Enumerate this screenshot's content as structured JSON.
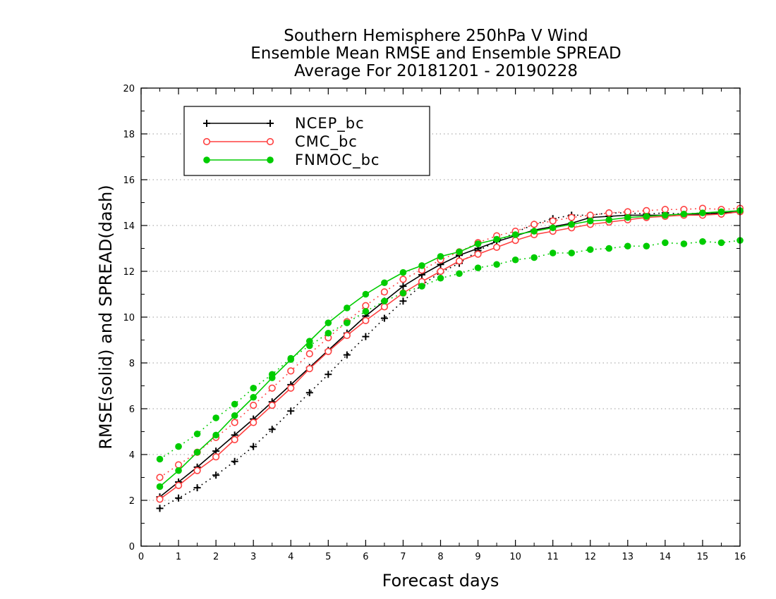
{
  "chart_data": {
    "type": "line",
    "title": [
      "Southern Hemisphere 250hPa V Wind",
      "Ensemble Mean RMSE and Ensemble SPREAD",
      "Average For 20181201 - 20190228"
    ],
    "xlabel": "Forecast days",
    "ylabel": "RMSE(solid) and SPREAD(dash)",
    "xlim": [
      0,
      16
    ],
    "ylim": [
      0,
      20
    ],
    "xticks": [
      0,
      1,
      2,
      3,
      4,
      5,
      6,
      7,
      8,
      9,
      10,
      11,
      12,
      13,
      14,
      15,
      16
    ],
    "yticks": [
      0,
      2,
      4,
      6,
      8,
      10,
      12,
      14,
      16,
      18,
      20
    ],
    "grid": "horizontal dotted",
    "legend_position": "top-left",
    "x": [
      0.5,
      1,
      1.5,
      2,
      2.5,
      3,
      3.5,
      4,
      4.5,
      5,
      5.5,
      6,
      6.5,
      7,
      7.5,
      8,
      8.5,
      9,
      9.5,
      10,
      10.5,
      11,
      11.5,
      12,
      12.5,
      13,
      13.5,
      14,
      14.5,
      15,
      15.5,
      16
    ],
    "series": [
      {
        "name": "NCEP_bc",
        "color": "#000000",
        "marker": "plus",
        "rmse": [
          2.15,
          2.8,
          3.45,
          4.15,
          4.85,
          5.55,
          6.3,
          7.05,
          7.8,
          8.55,
          9.3,
          10.05,
          10.7,
          11.35,
          11.85,
          12.3,
          12.7,
          13.0,
          13.3,
          13.55,
          13.8,
          13.95,
          14.1,
          14.35,
          14.4,
          14.45,
          14.45,
          14.45,
          14.5,
          14.5,
          14.55,
          14.6
        ],
        "spread": [
          1.65,
          2.1,
          2.55,
          3.1,
          3.7,
          4.35,
          5.1,
          5.9,
          6.7,
          7.5,
          8.35,
          9.15,
          9.95,
          10.7,
          11.4,
          11.95,
          12.35,
          12.9,
          13.3,
          13.7,
          14.05,
          14.3,
          14.45,
          14.45,
          14.55,
          14.55,
          14.5,
          14.55,
          14.5,
          14.55,
          14.5,
          14.6
        ]
      },
      {
        "name": "CMC_bc",
        "color": "#ff4040",
        "marker": "open-circle",
        "rmse": [
          2.05,
          2.65,
          3.3,
          3.9,
          4.65,
          5.4,
          6.15,
          6.9,
          7.75,
          8.5,
          9.2,
          9.85,
          10.45,
          11.05,
          11.55,
          12.0,
          12.45,
          12.75,
          13.05,
          13.35,
          13.6,
          13.75,
          13.9,
          14.05,
          14.15,
          14.25,
          14.35,
          14.4,
          14.45,
          14.45,
          14.5,
          14.6
        ],
        "spread": [
          3.0,
          3.55,
          4.1,
          4.75,
          5.4,
          6.15,
          6.9,
          7.65,
          8.4,
          9.1,
          9.8,
          10.5,
          11.1,
          11.65,
          12.05,
          12.5,
          12.85,
          13.25,
          13.55,
          13.75,
          14.05,
          14.2,
          14.35,
          14.45,
          14.55,
          14.6,
          14.65,
          14.7,
          14.7,
          14.75,
          14.7,
          14.75
        ]
      },
      {
        "name": "FNMOC_bc",
        "color": "#00cc00",
        "marker": "filled-circle",
        "rmse": [
          2.6,
          3.3,
          4.1,
          4.85,
          5.7,
          6.5,
          7.35,
          8.15,
          8.95,
          9.75,
          10.4,
          11.0,
          11.5,
          11.95,
          12.25,
          12.65,
          12.85,
          13.2,
          13.4,
          13.6,
          13.75,
          13.9,
          14.05,
          14.2,
          14.25,
          14.35,
          14.4,
          14.45,
          14.5,
          14.55,
          14.6,
          14.65
        ],
        "spread": [
          3.8,
          4.35,
          4.9,
          5.6,
          6.2,
          6.9,
          7.5,
          8.2,
          8.75,
          9.3,
          9.75,
          10.25,
          10.7,
          11.05,
          11.35,
          11.7,
          11.9,
          12.15,
          12.3,
          12.5,
          12.6,
          12.8,
          12.8,
          12.95,
          13.0,
          13.1,
          13.1,
          13.25,
          13.2,
          13.3,
          13.25,
          13.35
        ]
      }
    ]
  }
}
